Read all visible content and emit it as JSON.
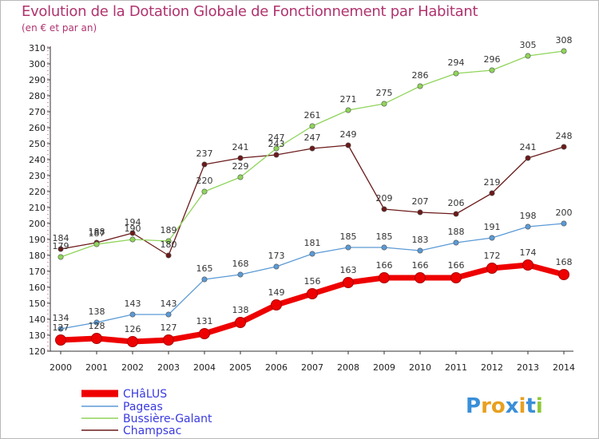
{
  "title": "Evolution de la Dotation Globale de Fonctionnement par Habitant",
  "subtitle": "(en € et par an)",
  "logo_text": "Proxiti",
  "chart_data": {
    "type": "line",
    "title": "Evolution de la Dotation Globale de Fonctionnement par Habitant",
    "subtitle": "(en € et par an)",
    "xlabel": "",
    "ylabel": "",
    "x": [
      2000,
      2001,
      2002,
      2003,
      2004,
      2005,
      2006,
      2007,
      2008,
      2009,
      2010,
      2011,
      2012,
      2013,
      2014
    ],
    "ylim": [
      120,
      310
    ],
    "yticks": [
      120,
      130,
      140,
      150,
      160,
      170,
      180,
      190,
      200,
      210,
      220,
      230,
      240,
      250,
      260,
      270,
      280,
      290,
      300,
      310
    ],
    "grid": false,
    "legend_position": "bottom-left",
    "series": [
      {
        "name": "CHâLUS",
        "color": "#ee0000",
        "values": [
          127,
          128,
          126,
          127,
          131,
          138,
          149,
          156,
          163,
          166,
          166,
          166,
          172,
          174,
          168
        ]
      },
      {
        "name": "Pageas",
        "color": "#5b9ad5",
        "values": [
          134,
          138,
          143,
          143,
          165,
          168,
          173,
          181,
          185,
          185,
          183,
          188,
          191,
          198,
          200
        ]
      },
      {
        "name": "Bussière-Galant",
        "color": "#8fd45a",
        "values": [
          179,
          187,
          190,
          189,
          220,
          229,
          247,
          261,
          271,
          275,
          286,
          294,
          296,
          305,
          308
        ]
      },
      {
        "name": "Champsac",
        "color": "#6b1a1a",
        "values": [
          184,
          188,
          194,
          180,
          237,
          241,
          243,
          247,
          249,
          209,
          207,
          206,
          219,
          241,
          248
        ]
      }
    ]
  }
}
